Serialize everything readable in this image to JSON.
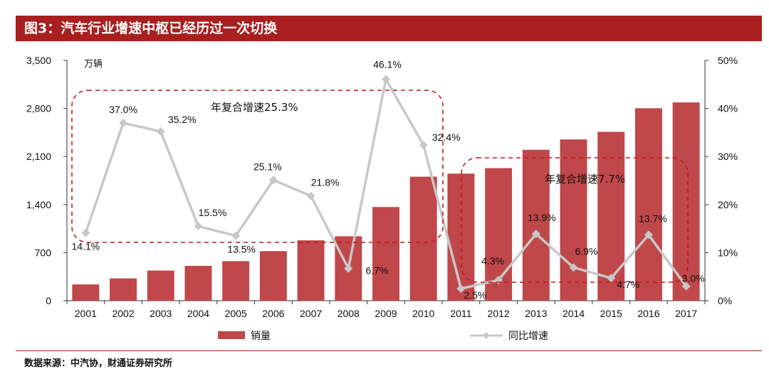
{
  "figure": {
    "title": "图3：汽车行业增速中枢已经历过一次切换",
    "source": "数据来源：中汽协，财通证券研究所"
  },
  "chart_data": {
    "type": "bar",
    "categories": [
      "2001",
      "2002",
      "2003",
      "2004",
      "2005",
      "2006",
      "2007",
      "2008",
      "2009",
      "2010",
      "2011",
      "2012",
      "2013",
      "2014",
      "2015",
      "2016",
      "2017"
    ],
    "unit_label": "万辆",
    "y_left": {
      "ylim": [
        0,
        3500
      ],
      "ticks": [
        "0",
        "700",
        "1,400",
        "2,100",
        "2,800",
        "3,500"
      ],
      "tick_values": [
        0,
        700,
        1400,
        2100,
        2800,
        3500
      ]
    },
    "y_right": {
      "ylim": [
        0,
        50
      ],
      "ticks": [
        "0%",
        "10%",
        "20%",
        "30%",
        "40%",
        "50%"
      ],
      "tick_values": [
        0,
        10,
        20,
        30,
        40,
        50
      ]
    },
    "series": [
      {
        "name": "销量",
        "type": "bar",
        "axis": "left",
        "color": "#c0474a",
        "values": [
          237,
          325,
          439,
          507,
          576,
          722,
          879,
          938,
          1364,
          1806,
          1851,
          1931,
          2198,
          2349,
          2460,
          2803,
          2888
        ]
      },
      {
        "name": "同比增速",
        "type": "line",
        "axis": "right",
        "color": "#c8c8c8",
        "values": [
          14.1,
          37.0,
          35.2,
          15.5,
          13.5,
          25.1,
          21.8,
          6.7,
          46.1,
          32.4,
          2.5,
          4.3,
          13.9,
          6.9,
          4.7,
          13.7,
          3.0
        ],
        "labels": [
          "14.1%",
          "37.0%",
          "35.2%",
          "15.5%",
          "13.5%",
          "25.1%",
          "21.8%",
          "6.7%",
          "46.1%",
          "32.4%",
          "2.5%",
          "4.3%",
          "13.9%",
          "6.9%",
          "4.7%",
          "13.7%",
          "3.0%"
        ]
      }
    ],
    "annotations": [
      {
        "text": "年复合增速25.3%",
        "span": [
          "2001",
          "2010"
        ]
      },
      {
        "text": "年复合增速7.7%",
        "span": [
          "2011",
          "2017"
        ]
      }
    ],
    "legend": "bottom-center",
    "grid": false
  }
}
